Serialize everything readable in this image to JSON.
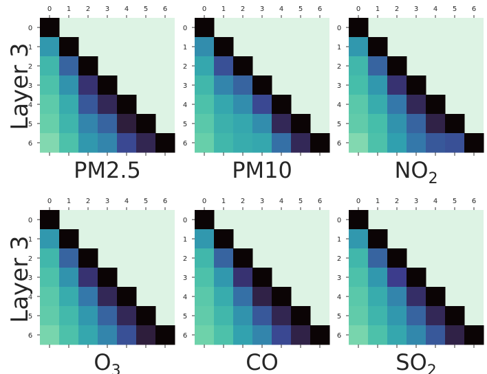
{
  "row_labels": [
    "Layer 3",
    "Layer 3"
  ],
  "chart_data": [
    {
      "type": "heatmap",
      "title": "PM2.5",
      "title_sub": "",
      "x_ticks": [
        "0",
        "1",
        "2",
        "3",
        "4",
        "5",
        "6"
      ],
      "y_ticks": [
        "0",
        "1",
        "2",
        "3",
        "4",
        "5",
        "6"
      ],
      "matrix": [
        [
          0.0
        ],
        [
          0.62,
          0.0
        ],
        [
          0.75,
          0.45,
          0.0
        ],
        [
          0.8,
          0.6,
          0.3,
          0.0
        ],
        [
          0.85,
          0.7,
          0.42,
          0.25,
          0.0
        ],
        [
          0.88,
          0.74,
          0.55,
          0.45,
          0.2,
          0.0
        ],
        [
          0.94,
          0.8,
          0.62,
          0.55,
          0.38,
          0.24,
          0.0
        ]
      ],
      "upper_color": "#ddf3e4",
      "diagonal_color": "#0b0405"
    },
    {
      "type": "heatmap",
      "title": "PM10",
      "title_sub": "",
      "x_ticks": [
        "0",
        "1",
        "2",
        "3",
        "4",
        "5",
        "6"
      ],
      "y_ticks": [
        "0",
        "1",
        "2",
        "3",
        "4",
        "5",
        "6"
      ],
      "matrix": [
        [
          0.0
        ],
        [
          0.58,
          0.0
        ],
        [
          0.68,
          0.4,
          0.0
        ],
        [
          0.75,
          0.55,
          0.45,
          0.0
        ],
        [
          0.8,
          0.68,
          0.58,
          0.38,
          0.0
        ],
        [
          0.84,
          0.72,
          0.68,
          0.58,
          0.25,
          0.0
        ],
        [
          0.88,
          0.75,
          0.7,
          0.68,
          0.48,
          0.25,
          0.0
        ]
      ],
      "upper_color": "#ddf3e4",
      "diagonal_color": "#0b0405"
    },
    {
      "type": "heatmap",
      "title": "NO",
      "title_sub": "2",
      "x_ticks": [
        "0",
        "1",
        "2",
        "3",
        "4",
        "5",
        "6"
      ],
      "y_ticks": [
        "0",
        "1",
        "2",
        "3",
        "4",
        "5",
        "6"
      ],
      "matrix": [
        [
          0.0
        ],
        [
          0.62,
          0.0
        ],
        [
          0.75,
          0.45,
          0.0
        ],
        [
          0.78,
          0.62,
          0.3,
          0.0
        ],
        [
          0.84,
          0.7,
          0.5,
          0.25,
          0.0
        ],
        [
          0.86,
          0.78,
          0.6,
          0.45,
          0.22,
          0.0
        ],
        [
          0.94,
          0.8,
          0.65,
          0.5,
          0.42,
          0.4,
          0.0
        ]
      ],
      "upper_color": "#ddf3e4",
      "diagonal_color": "#0b0405"
    },
    {
      "type": "heatmap",
      "title": "O",
      "title_sub": "3",
      "x_ticks": [
        "0",
        "1",
        "2",
        "3",
        "4",
        "5",
        "6"
      ],
      "y_ticks": [
        "0",
        "1",
        "2",
        "3",
        "4",
        "5",
        "6"
      ],
      "matrix": [
        [
          0.0
        ],
        [
          0.62,
          0.0
        ],
        [
          0.75,
          0.45,
          0.0
        ],
        [
          0.8,
          0.6,
          0.3,
          0.0
        ],
        [
          0.84,
          0.7,
          0.5,
          0.25,
          0.0
        ],
        [
          0.86,
          0.76,
          0.62,
          0.45,
          0.25,
          0.0
        ],
        [
          0.92,
          0.8,
          0.68,
          0.55,
          0.4,
          0.2,
          0.0
        ]
      ],
      "upper_color": "#ddf3e4",
      "diagonal_color": "#0b0405"
    },
    {
      "type": "heatmap",
      "title": "CO",
      "title_sub": "",
      "x_ticks": [
        "0",
        "1",
        "2",
        "3",
        "4",
        "5",
        "6"
      ],
      "y_ticks": [
        "0",
        "1",
        "2",
        "3",
        "4",
        "5",
        "6"
      ],
      "matrix": [
        [
          0.0
        ],
        [
          0.62,
          0.0
        ],
        [
          0.75,
          0.45,
          0.0
        ],
        [
          0.8,
          0.62,
          0.3,
          0.0
        ],
        [
          0.84,
          0.7,
          0.48,
          0.22,
          0.0
        ],
        [
          0.86,
          0.75,
          0.6,
          0.42,
          0.24,
          0.0
        ],
        [
          0.9,
          0.8,
          0.66,
          0.55,
          0.38,
          0.22,
          0.0
        ]
      ],
      "upper_color": "#ddf3e4",
      "diagonal_color": "#0b0405"
    },
    {
      "type": "heatmap",
      "title": "SO",
      "title_sub": "2",
      "x_ticks": [
        "0",
        "1",
        "2",
        "3",
        "4",
        "5",
        "6"
      ],
      "y_ticks": [
        "0",
        "1",
        "2",
        "3",
        "4",
        "5",
        "6"
      ],
      "matrix": [
        [
          0.0
        ],
        [
          0.62,
          0.0
        ],
        [
          0.75,
          0.45,
          0.0
        ],
        [
          0.8,
          0.62,
          0.35,
          0.0
        ],
        [
          0.84,
          0.7,
          0.55,
          0.28,
          0.0
        ],
        [
          0.86,
          0.74,
          0.62,
          0.45,
          0.25,
          0.0
        ],
        [
          0.92,
          0.8,
          0.68,
          0.56,
          0.42,
          0.22,
          0.0
        ]
      ],
      "upper_color": "#ddf3e4",
      "diagonal_color": "#0b0405"
    }
  ]
}
